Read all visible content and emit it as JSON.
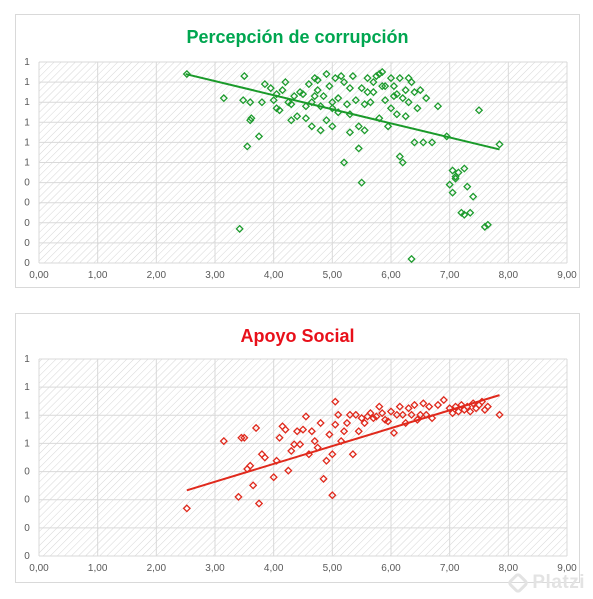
{
  "watermark": "Platzi",
  "chart_data": [
    {
      "type": "scatter",
      "title": "Percepción de corrupción",
      "title_color": "#00a650",
      "marker_color": "#1e9c2e",
      "trend_color": "#1a9a2a",
      "xlim": [
        0,
        9
      ],
      "ylim": [
        0,
        1.0
      ],
      "xticks": [
        "0,00",
        "1,00",
        "2,00",
        "3,00",
        "4,00",
        "5,00",
        "6,00",
        "7,00",
        "8,00",
        "9,00"
      ],
      "yticks": [
        "0",
        "0",
        "0",
        "0",
        "0",
        "1",
        "1",
        "1",
        "1",
        "1",
        "1"
      ],
      "grid": true,
      "trendline": {
        "x": [
          2.5,
          7.85
        ],
        "y": [
          0.94,
          0.565
        ]
      },
      "x": [
        2.52,
        3.15,
        3.42,
        3.48,
        3.5,
        3.55,
        3.6,
        3.6,
        3.62,
        3.75,
        3.8,
        3.85,
        3.95,
        4.0,
        4.05,
        4.05,
        4.1,
        4.15,
        4.2,
        4.25,
        4.3,
        4.3,
        4.35,
        4.4,
        4.45,
        4.5,
        4.55,
        4.55,
        4.6,
        4.65,
        4.65,
        4.7,
        4.7,
        4.75,
        4.75,
        4.8,
        4.8,
        4.85,
        4.9,
        4.9,
        4.95,
        5.0,
        5.0,
        5.0,
        5.05,
        5.1,
        5.1,
        5.15,
        5.2,
        5.2,
        5.25,
        5.3,
        5.3,
        5.3,
        5.35,
        5.4,
        5.45,
        5.45,
        5.5,
        5.5,
        5.55,
        5.55,
        5.6,
        5.6,
        5.65,
        5.7,
        5.7,
        5.75,
        5.8,
        5.8,
        5.85,
        5.85,
        5.9,
        5.9,
        5.95,
        6.0,
        6.0,
        6.05,
        6.05,
        6.1,
        6.1,
        6.15,
        6.15,
        6.2,
        6.2,
        6.25,
        6.25,
        6.3,
        6.3,
        6.35,
        6.35,
        6.4,
        6.4,
        6.45,
        6.5,
        6.55,
        6.6,
        6.7,
        6.8,
        6.95,
        7.0,
        7.05,
        7.05,
        7.1,
        7.1,
        7.15,
        7.2,
        7.25,
        7.25,
        7.3,
        7.35,
        7.4,
        7.5,
        7.6,
        7.65,
        7.85
      ],
      "y": [
        0.94,
        0.82,
        0.17,
        0.81,
        0.93,
        0.58,
        0.71,
        0.8,
        0.72,
        0.63,
        0.8,
        0.89,
        0.87,
        0.81,
        0.77,
        0.84,
        0.76,
        0.86,
        0.9,
        0.8,
        0.79,
        0.71,
        0.83,
        0.73,
        0.85,
        0.84,
        0.72,
        0.78,
        0.89,
        0.68,
        0.8,
        0.83,
        0.92,
        0.86,
        0.91,
        0.78,
        0.66,
        0.83,
        0.94,
        0.71,
        0.88,
        0.77,
        0.8,
        0.68,
        0.92,
        0.75,
        0.82,
        0.93,
        0.5,
        0.9,
        0.79,
        0.65,
        0.74,
        0.87,
        0.93,
        0.81,
        0.57,
        0.68,
        0.4,
        0.87,
        0.66,
        0.79,
        0.85,
        0.92,
        0.8,
        0.9,
        0.85,
        0.93,
        0.94,
        0.72,
        0.88,
        0.95,
        0.81,
        0.88,
        0.68,
        0.77,
        0.92,
        0.83,
        0.88,
        0.74,
        0.84,
        0.53,
        0.92,
        0.5,
        0.82,
        0.86,
        0.73,
        0.92,
        0.8,
        0.9,
        0.02,
        0.6,
        0.85,
        0.77,
        0.86,
        0.6,
        0.82,
        0.6,
        0.78,
        0.63,
        0.39,
        0.46,
        0.35,
        0.43,
        0.42,
        0.45,
        0.25,
        0.47,
        0.24,
        0.38,
        0.25,
        0.33,
        0.76,
        0.18,
        0.19,
        0.59
      ],
      "y_note": "y axis tick labels are rounded to integers; values are estimated by pixel position relative to 10 gridlines"
    },
    {
      "type": "scatter",
      "title": "Apoyo Social",
      "title_color": "#e8101a",
      "marker_color": "#e0291c",
      "trend_color": "#e0291c",
      "xlim": [
        0,
        9
      ],
      "ylim": [
        0,
        1.2
      ],
      "xticks": [
        "0,00",
        "1,00",
        "2,00",
        "3,00",
        "4,00",
        "5,00",
        "6,00",
        "7,00",
        "8,00",
        "9,00"
      ],
      "yticks": [
        "0",
        "0",
        "0",
        "0",
        "1",
        "1",
        "1",
        "1"
      ],
      "grid": true,
      "trendline": {
        "x": [
          2.52,
          7.85
        ],
        "y": [
          0.4,
          0.98
        ]
      },
      "x": [
        2.52,
        3.15,
        3.4,
        3.45,
        3.5,
        3.55,
        3.6,
        3.65,
        3.7,
        3.75,
        3.8,
        3.85,
        4.0,
        4.05,
        4.1,
        4.15,
        4.2,
        4.25,
        4.3,
        4.35,
        4.4,
        4.45,
        4.5,
        4.55,
        4.6,
        4.65,
        4.7,
        4.75,
        4.8,
        4.85,
        4.9,
        4.95,
        5.0,
        5.0,
        5.05,
        5.05,
        5.1,
        5.15,
        5.2,
        5.25,
        5.3,
        5.35,
        5.4,
        5.45,
        5.5,
        5.55,
        5.6,
        5.65,
        5.7,
        5.75,
        5.8,
        5.85,
        5.9,
        5.95,
        6.0,
        6.05,
        6.1,
        6.15,
        6.2,
        6.25,
        6.3,
        6.35,
        6.4,
        6.45,
        6.5,
        6.55,
        6.6,
        6.65,
        6.7,
        6.8,
        6.9,
        7.0,
        7.05,
        7.1,
        7.15,
        7.2,
        7.25,
        7.3,
        7.35,
        7.4,
        7.45,
        7.5,
        7.55,
        7.6,
        7.65,
        7.85
      ],
      "y": [
        0.29,
        0.7,
        0.36,
        0.72,
        0.72,
        0.53,
        0.55,
        0.43,
        0.78,
        0.32,
        0.62,
        0.6,
        0.48,
        0.58,
        0.72,
        0.79,
        0.77,
        0.52,
        0.64,
        0.68,
        0.76,
        0.68,
        0.77,
        0.85,
        0.62,
        0.76,
        0.7,
        0.66,
        0.81,
        0.47,
        0.58,
        0.74,
        0.62,
        0.37,
        0.94,
        0.8,
        0.86,
        0.7,
        0.76,
        0.81,
        0.86,
        0.62,
        0.86,
        0.76,
        0.84,
        0.81,
        0.85,
        0.87,
        0.84,
        0.85,
        0.91,
        0.87,
        0.83,
        0.82,
        0.88,
        0.75,
        0.86,
        0.91,
        0.86,
        0.81,
        0.9,
        0.86,
        0.92,
        0.83,
        0.86,
        0.93,
        0.86,
        0.91,
        0.84,
        0.92,
        0.95,
        0.9,
        0.87,
        0.91,
        0.88,
        0.92,
        0.89,
        0.91,
        0.88,
        0.93,
        0.9,
        0.92,
        0.94,
        0.89,
        0.91,
        0.86
      ]
    }
  ]
}
